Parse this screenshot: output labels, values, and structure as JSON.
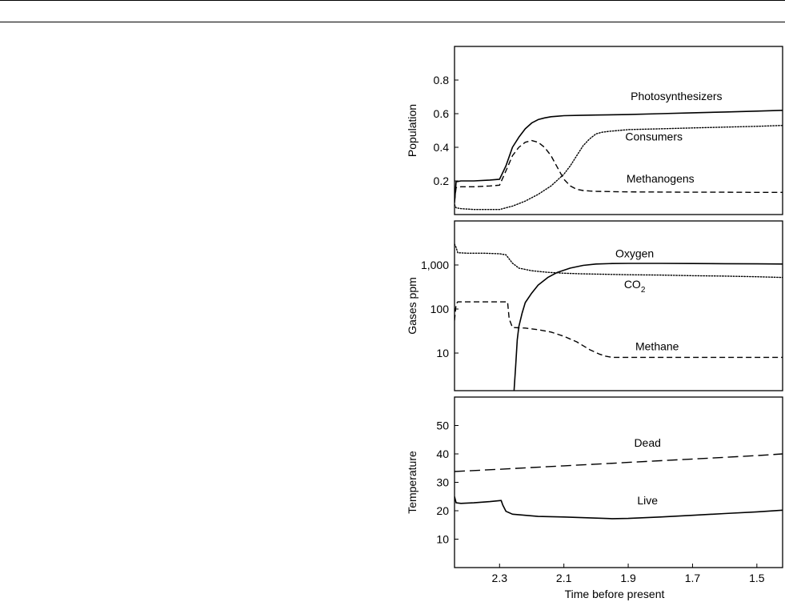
{
  "chart_data": [
    {
      "type": "line",
      "panel": "population",
      "ylabel": "Population",
      "xlabel": "",
      "ylim": [
        0.0,
        1.0
      ],
      "xlim": [
        2.44,
        1.42
      ],
      "x_reversed": true,
      "yticks": [
        {
          "value": 0.2,
          "label": "0.2"
        },
        {
          "value": 0.4,
          "label": "0.4"
        },
        {
          "value": 0.6,
          "label": "0.6"
        },
        {
          "value": 0.8,
          "label": "0.8"
        }
      ],
      "series": [
        {
          "name": "Photosynthesizers",
          "style": "solid",
          "x": [
            2.44,
            2.435,
            2.42,
            2.38,
            2.33,
            2.3,
            2.28,
            2.26,
            2.24,
            2.22,
            2.2,
            2.18,
            2.16,
            2.14,
            2.12,
            2.1,
            2.05,
            2.0,
            1.9,
            1.8,
            1.7,
            1.6,
            1.5,
            1.42
          ],
          "y": [
            0.07,
            0.195,
            0.2,
            0.2,
            0.205,
            0.21,
            0.29,
            0.4,
            0.46,
            0.51,
            0.545,
            0.565,
            0.575,
            0.582,
            0.585,
            0.588,
            0.59,
            0.592,
            0.595,
            0.6,
            0.605,
            0.61,
            0.615,
            0.62
          ]
        },
        {
          "name": "Methanogens",
          "style": "dashed",
          "x": [
            2.44,
            2.435,
            2.42,
            2.38,
            2.33,
            2.3,
            2.28,
            2.26,
            2.24,
            2.22,
            2.2,
            2.18,
            2.16,
            2.14,
            2.12,
            2.1,
            2.08,
            2.06,
            2.04,
            2.02,
            2.0,
            1.95,
            1.9,
            1.8,
            1.7,
            1.6,
            1.5,
            1.42
          ],
          "y": [
            0.08,
            0.16,
            0.165,
            0.165,
            0.17,
            0.175,
            0.26,
            0.35,
            0.4,
            0.43,
            0.44,
            0.43,
            0.4,
            0.35,
            0.28,
            0.21,
            0.17,
            0.15,
            0.143,
            0.14,
            0.138,
            0.136,
            0.135,
            0.134,
            0.133,
            0.133,
            0.132,
            0.132
          ]
        },
        {
          "name": "Consumers",
          "style": "dotted",
          "x": [
            2.44,
            2.435,
            2.42,
            2.38,
            2.33,
            2.3,
            2.26,
            2.22,
            2.18,
            2.14,
            2.1,
            2.08,
            2.06,
            2.04,
            2.02,
            2.0,
            1.98,
            1.96,
            1.93,
            1.9,
            1.8,
            1.7,
            1.6,
            1.5,
            1.42
          ],
          "y": [
            0.06,
            0.04,
            0.035,
            0.03,
            0.03,
            0.03,
            0.05,
            0.08,
            0.12,
            0.17,
            0.24,
            0.29,
            0.35,
            0.41,
            0.45,
            0.48,
            0.49,
            0.495,
            0.5,
            0.505,
            0.51,
            0.515,
            0.52,
            0.525,
            0.53
          ]
        }
      ],
      "annotations": [
        {
          "text": "Photosynthesizers",
          "x": 1.75,
          "y": 0.68
        },
        {
          "text": "Consumers",
          "x": 1.82,
          "y": 0.44
        },
        {
          "text": "Methanogens",
          "x": 1.8,
          "y": 0.19
        }
      ]
    },
    {
      "type": "line",
      "panel": "gases",
      "ylabel": "Gases ppm",
      "xlabel": "",
      "yscale": "log",
      "ylim": [
        1.4,
        10000
      ],
      "xlim": [
        2.44,
        1.42
      ],
      "x_reversed": true,
      "yticks": [
        {
          "value": 10,
          "label": "10"
        },
        {
          "value": 100,
          "label": "100"
        },
        {
          "value": 1000,
          "label": "1,000"
        }
      ],
      "series": [
        {
          "name": "Oxygen",
          "style": "solid",
          "x": [
            2.255,
            2.25,
            2.245,
            2.24,
            2.23,
            2.22,
            2.2,
            2.18,
            2.15,
            2.12,
            2.08,
            2.04,
            2.0,
            1.95,
            1.9,
            1.8,
            1.7,
            1.6,
            1.5,
            1.42
          ],
          "y": [
            1.4,
            5,
            20,
            40,
            80,
            140,
            230,
            350,
            520,
            680,
            850,
            980,
            1050,
            1080,
            1090,
            1090,
            1080,
            1070,
            1060,
            1050
          ]
        },
        {
          "name": "CO₂",
          "style": "dotted",
          "x": [
            2.44,
            2.435,
            2.43,
            2.4,
            2.35,
            2.3,
            2.28,
            2.26,
            2.24,
            2.2,
            2.15,
            2.1,
            2.05,
            2.0,
            1.9,
            1.8,
            1.7,
            1.6,
            1.5,
            1.42
          ],
          "y": [
            3000,
            2500,
            1900,
            1850,
            1850,
            1800,
            1700,
            1100,
            850,
            740,
            680,
            650,
            630,
            620,
            600,
            590,
            570,
            560,
            540,
            520
          ]
        },
        {
          "name": "Methane",
          "style": "dashed",
          "x": [
            2.44,
            2.435,
            2.43,
            2.4,
            2.35,
            2.3,
            2.275,
            2.27,
            2.26,
            2.22,
            2.18,
            2.14,
            2.1,
            2.06,
            2.02,
            1.99,
            1.97,
            1.95,
            1.9,
            1.8,
            1.7,
            1.6,
            1.5,
            1.42
          ],
          "y": [
            55,
            130,
            145,
            145,
            145,
            145,
            145,
            60,
            38,
            37,
            34,
            30,
            24,
            18,
            12,
            9.5,
            8.5,
            8,
            8,
            8,
            8,
            8,
            8,
            8
          ]
        }
      ],
      "annotations": [
        {
          "text": "Oxygen",
          "x": 1.88,
          "y": 1500
        },
        {
          "text": "CO",
          "sub": "2",
          "x": 1.88,
          "y": 300
        },
        {
          "text": "Methane",
          "x": 1.81,
          "y": 11.5
        }
      ]
    },
    {
      "type": "line",
      "panel": "temperature",
      "ylabel": "Temperature",
      "xlabel": "Time before present",
      "ylim": [
        0,
        60
      ],
      "xlim": [
        2.44,
        1.42
      ],
      "x_reversed": true,
      "yticks": [
        {
          "value": 10,
          "label": "10"
        },
        {
          "value": 20,
          "label": "20"
        },
        {
          "value": 30,
          "label": "30"
        },
        {
          "value": 40,
          "label": "40"
        },
        {
          "value": 50,
          "label": "50"
        }
      ],
      "xticks": [
        {
          "value": 2.3,
          "label": "2.3"
        },
        {
          "value": 2.1,
          "label": "2.1"
        },
        {
          "value": 1.9,
          "label": "1.9"
        },
        {
          "value": 1.7,
          "label": "1.7"
        },
        {
          "value": 1.5,
          "label": "1.5"
        }
      ],
      "series": [
        {
          "name": "Dead",
          "style": "longdash",
          "x": [
            2.44,
            2.3,
            2.2,
            2.1,
            2.0,
            1.9,
            1.8,
            1.7,
            1.6,
            1.5,
            1.42
          ],
          "y": [
            33.8,
            34.6,
            35.2,
            35.8,
            36.4,
            37.0,
            37.6,
            38.2,
            38.8,
            39.4,
            40.0
          ]
        },
        {
          "name": "Live",
          "style": "solid",
          "x": [
            2.44,
            2.435,
            2.42,
            2.38,
            2.33,
            2.295,
            2.29,
            2.28,
            2.26,
            2.22,
            2.18,
            2.1,
            2.0,
            1.95,
            1.9,
            1.8,
            1.7,
            1.6,
            1.5,
            1.42
          ],
          "y": [
            25.0,
            22.8,
            22.6,
            22.8,
            23.2,
            23.6,
            22.0,
            19.8,
            18.8,
            18.4,
            18.0,
            17.8,
            17.4,
            17.2,
            17.3,
            17.8,
            18.4,
            19.0,
            19.6,
            20.2
          ]
        }
      ],
      "annotations": [
        {
          "text": "Dead",
          "x": 1.84,
          "y": 42.5
        },
        {
          "text": "Live",
          "x": 1.84,
          "y": 22.3
        }
      ]
    }
  ]
}
